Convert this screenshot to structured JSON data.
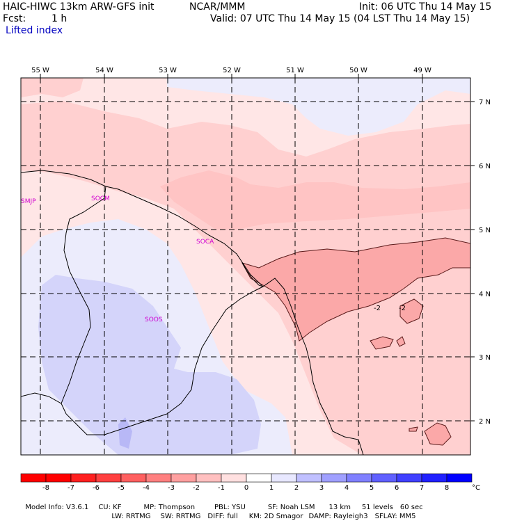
{
  "header": {
    "model_title": "HAIC-HIWC 13km ARW-GFS init",
    "center": "NCAR/MMM",
    "init": "Init: 06 UTC Thu 14 May 15",
    "fcst_label": "Fcst:",
    "fcst_value": "1 h",
    "valid": "Valid: 07 UTC Thu 14 May 15 (04 LST Thu 14 May 15)",
    "field_name": "Lifted index"
  },
  "map": {
    "lon_labels": [
      "55 W",
      "54 W",
      "53 W",
      "52 W",
      "51 W",
      "50 W",
      "49 W"
    ],
    "lat_labels": [
      "7 N",
      "6 N",
      "5 N",
      "4 N",
      "3 N",
      "2 N"
    ],
    "stations": [
      "SMJP",
      "SOCM",
      "SOCA",
      "SOOS"
    ],
    "contour_labels": [
      "-2",
      "-2"
    ]
  },
  "legend": {
    "units": "°C",
    "ticks": [
      "-8",
      "-7",
      "-6",
      "-5",
      "-4",
      "-3",
      "-2",
      "-1",
      "0",
      "1",
      "2",
      "3",
      "4",
      "5",
      "6",
      "7",
      "8"
    ],
    "colors": [
      "#ff0000",
      "#ff2020",
      "#ff4040",
      "#ff6060",
      "#ff8080",
      "#ffa0a0",
      "#ffc0c0",
      "#ffe0e0",
      "#ffffff",
      "#e8e8ff",
      "#c0c0ff",
      "#a0a0ff",
      "#8080ff",
      "#6060ff",
      "#4040ff",
      "#2020ff",
      "#0000ff"
    ]
  },
  "footer": {
    "line1": [
      "Model Info: V3.6.1",
      "CU: KF",
      "MP: Thompson",
      "PBL: YSU",
      "SF: Noah LSM",
      "13 km",
      "51 levels",
      "60 sec"
    ],
    "line2": [
      "LW: RRTMG",
      "SW: RRTMG",
      "DIFF: full",
      "KM: 2D Smagor",
      "DAMP: Rayleigh3",
      "SFLAY: MM5"
    ]
  }
}
